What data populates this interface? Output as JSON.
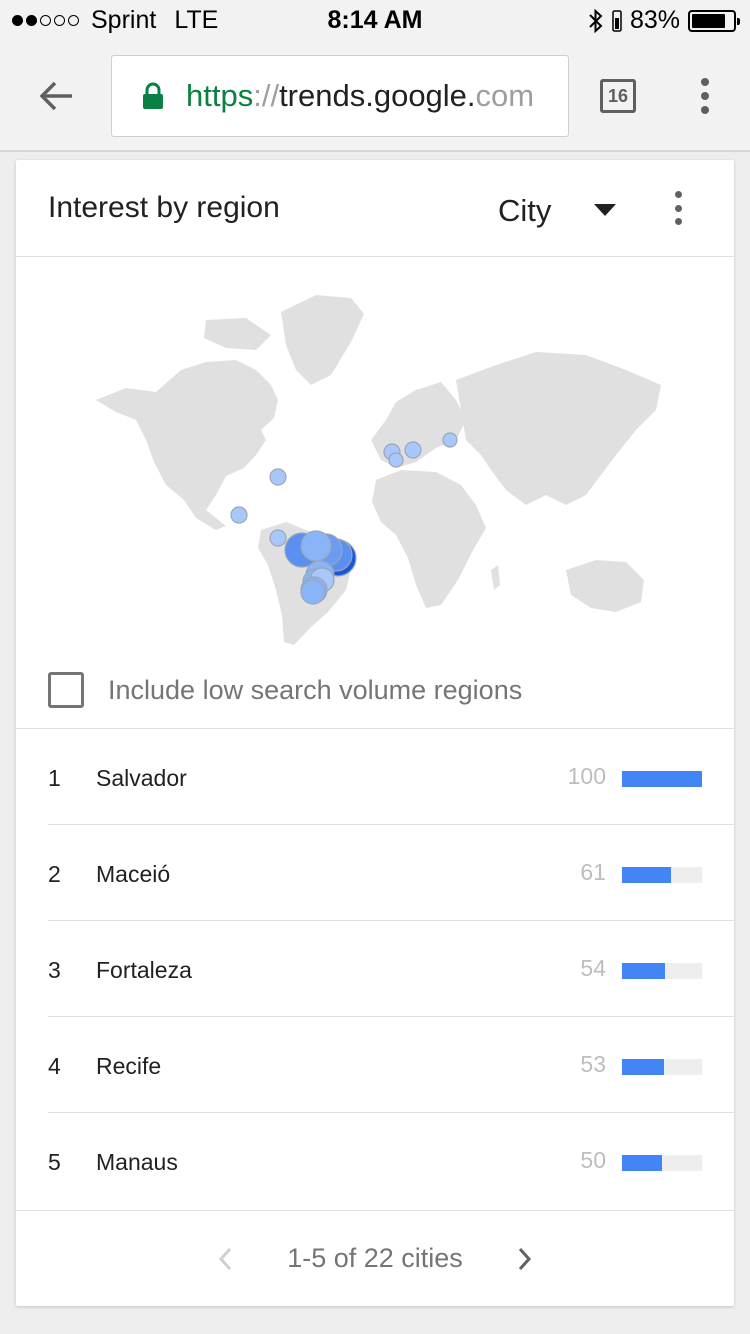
{
  "status_bar": {
    "carrier": "Sprint",
    "network": "LTE",
    "time": "8:14 AM",
    "battery_percent": "83%",
    "battery_level": 0.83,
    "signal_bars_filled": 2,
    "signal_bars_total": 5
  },
  "browser": {
    "url_scheme": "https",
    "url_separator": "://",
    "url_host": "trends.google.",
    "url_tail": "com",
    "tab_count": "16",
    "secure_color": "#0b8043"
  },
  "card": {
    "title": "Interest by region",
    "resolution": "City",
    "low_volume_label": "Include low search volume regions",
    "low_volume_checked": false
  },
  "regions": [
    {
      "rank": "1",
      "city": "Salvador",
      "value": "100",
      "score": 100
    },
    {
      "rank": "2",
      "city": "Maceió",
      "value": "61",
      "score": 61
    },
    {
      "rank": "3",
      "city": "Fortaleza",
      "value": "54",
      "score": 54
    },
    {
      "rank": "4",
      "city": "Recife",
      "value": "53",
      "score": 53
    },
    {
      "rank": "5",
      "city": "Manaus",
      "value": "50",
      "score": 50
    }
  ],
  "pager": {
    "label": "1-5 of 22 cities"
  },
  "colors": {
    "accent": "#4285f4",
    "bubble_light": "#8ab4f8",
    "land": "#e0e0e0"
  }
}
